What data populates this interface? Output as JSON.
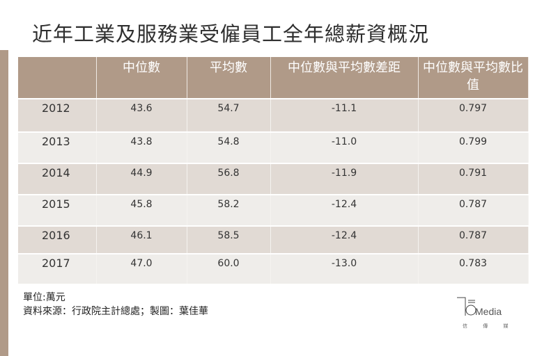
{
  "colors": {
    "accent": "#b09a88",
    "row_dark": "#e1dad4",
    "row_light": "#efedea"
  },
  "title": "近年工業及服務業受僱員工全年總薪資概況",
  "table": {
    "headers": [
      "",
      "中位數",
      "平均數",
      "中位數與平均數差距",
      "中位數與平均數比值"
    ],
    "rows": [
      [
        "2012",
        "43.6",
        "54.7",
        "-11.1",
        "0.797"
      ],
      [
        "2013",
        "43.8",
        "54.8",
        "-11.0",
        "0.799"
      ],
      [
        "2014",
        "44.9",
        "56.8",
        "-11.9",
        "0.791"
      ],
      [
        "2015",
        "45.8",
        "58.2",
        "-12.4",
        "0.787"
      ],
      [
        "2016",
        "46.1",
        "58.5",
        "-12.4",
        "0.787"
      ],
      [
        "2017",
        "47.0",
        "60.0",
        "-13.0",
        "0.783"
      ]
    ]
  },
  "notes": {
    "unit": "單位:萬元",
    "source": "資料來源：行政院主計總處；製圖：葉佳華"
  },
  "logo": {
    "text": "Media",
    "sub": "信 傳 媒"
  }
}
